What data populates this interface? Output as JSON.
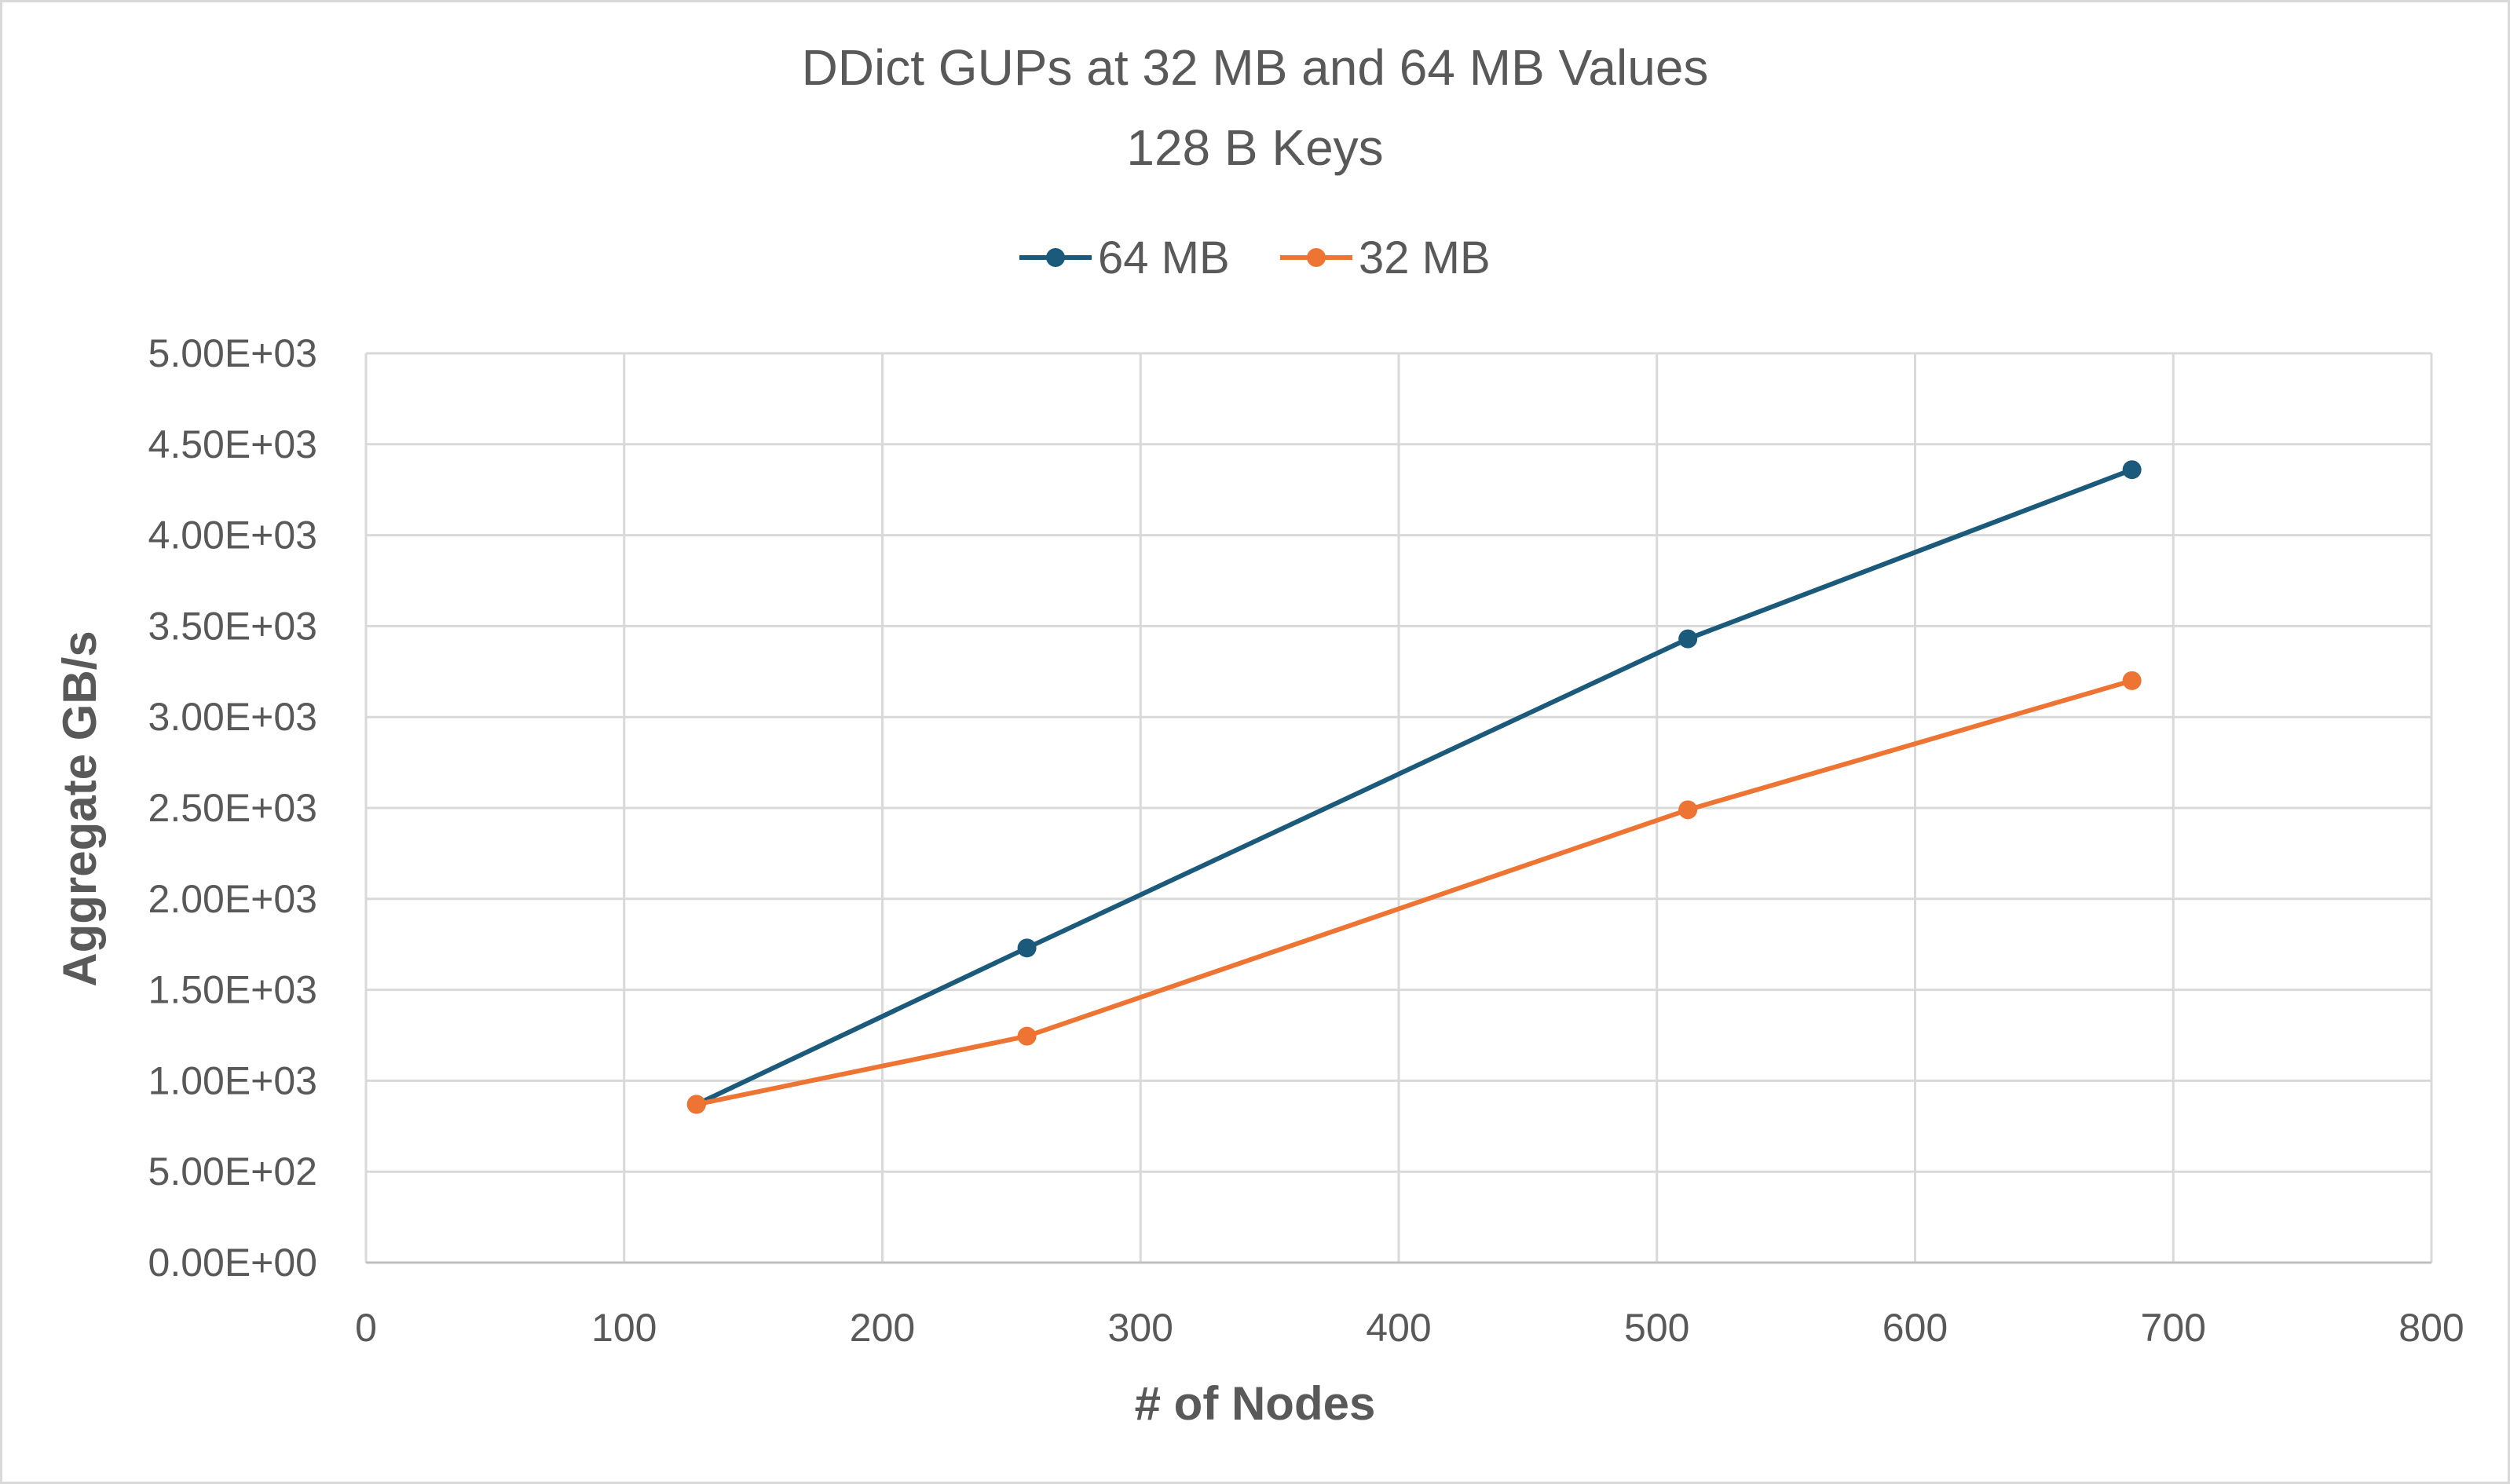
{
  "chart_data": {
    "type": "line",
    "title": "DDict GUPs at 32 MB and 64 MB Values",
    "subtitle": "128 B Keys",
    "xlabel": "# of Nodes",
    "ylabel": "Aggregate GB/s",
    "xlim": [
      0,
      800
    ],
    "ylim": [
      0,
      5000
    ],
    "x_ticks": [
      0,
      100,
      200,
      300,
      400,
      500,
      600,
      700,
      800
    ],
    "x_tick_labels": [
      "0",
      "100",
      "200",
      "300",
      "400",
      "500",
      "600",
      "700",
      "800"
    ],
    "y_ticks": [
      0,
      500,
      1000,
      1500,
      2000,
      2500,
      3000,
      3500,
      4000,
      4500,
      5000
    ],
    "y_tick_labels": [
      "0.00E+00",
      "5.00E+02",
      "1.00E+03",
      "1.50E+03",
      "2.00E+03",
      "2.50E+03",
      "3.00E+03",
      "3.50E+03",
      "4.00E+03",
      "4.50E+03",
      "5.00E+03"
    ],
    "grid": true,
    "legend_position": "top-center",
    "series": [
      {
        "name": "64 MB",
        "color": "#1b5a7a",
        "x": [
          128,
          256,
          512,
          684
        ],
        "y": [
          870,
          1730,
          3430,
          4360
        ]
      },
      {
        "name": "32 MB",
        "color": "#ed7432",
        "x": [
          128,
          256,
          512,
          684
        ],
        "y": [
          870,
          1245,
          2490,
          3200
        ]
      }
    ]
  }
}
